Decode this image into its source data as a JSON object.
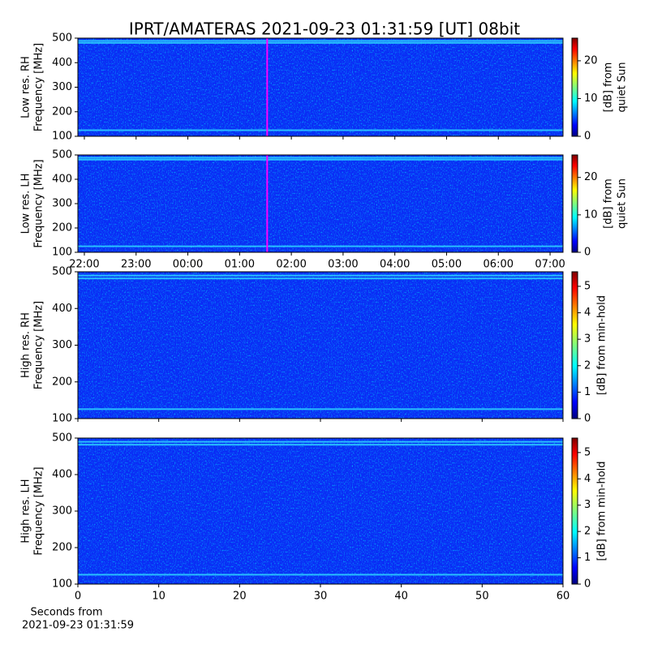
{
  "chart_data": [
    {
      "type": "spectrogram",
      "title": "IPRT/AMATERAS 2021-09-23 01:31:59 [UT]   08bit",
      "ylabel": [
        "Low res. RH",
        "Frequency [MHz]"
      ],
      "ylim": [
        100,
        500
      ],
      "yticks": [
        100,
        200,
        300,
        400,
        500
      ],
      "xlim": [
        21.875,
        31.25
      ],
      "xticks": [
        22,
        23,
        24,
        25,
        26,
        27,
        28,
        29,
        30,
        31
      ],
      "marker_x": 25.533,
      "marker_color": "#ff00ff",
      "colormap": "jet",
      "colorbar": {
        "label": [
          "[dB] from",
          "quiet Sun"
        ],
        "lim": [
          0,
          26
        ],
        "ticks": [
          0,
          10,
          20
        ]
      }
    },
    {
      "type": "spectrogram",
      "ylabel": [
        "Low res. LH",
        "Frequency [MHz]"
      ],
      "ylim": [
        100,
        500
      ],
      "yticks": [
        100,
        200,
        300,
        400,
        500
      ],
      "xlim": [
        21.875,
        31.25
      ],
      "xticks": [
        {
          "value": 22,
          "label": "22:00"
        },
        {
          "value": 23,
          "label": "23:00"
        },
        {
          "value": 24,
          "label": "00:00"
        },
        {
          "value": 25,
          "label": "01:00"
        },
        {
          "value": 26,
          "label": "02:00"
        },
        {
          "value": 27,
          "label": "03:00"
        },
        {
          "value": 28,
          "label": "04:00"
        },
        {
          "value": 29,
          "label": "05:00"
        },
        {
          "value": 30,
          "label": "06:00"
        },
        {
          "value": 31,
          "label": "07:00"
        }
      ],
      "marker_x": 25.533,
      "marker_color": "#ff00ff",
      "colormap": "jet",
      "colorbar": {
        "label": [
          "[dB] from",
          "quiet Sun"
        ],
        "lim": [
          0,
          26
        ],
        "ticks": [
          0,
          10,
          20
        ]
      }
    },
    {
      "type": "spectrogram",
      "ylabel": [
        "High res. RH",
        "Frequency [MHz]"
      ],
      "ylim": [
        100,
        500
      ],
      "yticks": [
        100,
        200,
        300,
        400,
        500
      ],
      "xlim": [
        0,
        60
      ],
      "xticks": [
        0,
        10,
        20,
        30,
        40,
        50,
        60
      ],
      "colormap": "jet",
      "colorbar": {
        "label": [
          "[dB] from min-hold"
        ],
        "lim": [
          0,
          5.55
        ],
        "ticks": [
          0,
          1,
          2,
          3,
          4,
          5
        ]
      }
    },
    {
      "type": "spectrogram",
      "ylabel": [
        "High res. LH",
        "Frequency [MHz]"
      ],
      "ylim": [
        100,
        500
      ],
      "yticks": [
        100,
        200,
        300,
        400,
        500
      ],
      "xlim": [
        0,
        60
      ],
      "xticks": [
        0,
        10,
        20,
        30,
        40,
        50,
        60
      ],
      "show_xticklabels": true,
      "xlabel": [
        "Seconds from",
        "2021-09-23 01:31:59"
      ],
      "colormap": "jet",
      "colorbar": {
        "label": [
          "[dB] from min-hold"
        ],
        "lim": [
          0,
          5.55
        ],
        "ticks": [
          0,
          1,
          2,
          3,
          4,
          5
        ]
      }
    }
  ]
}
